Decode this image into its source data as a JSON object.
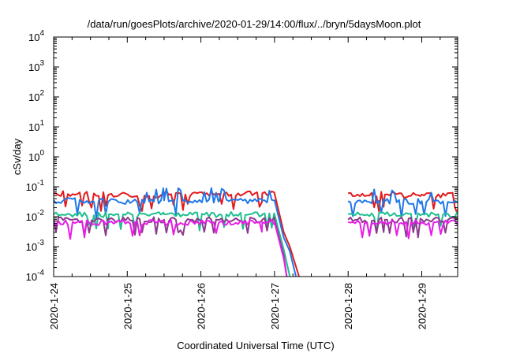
{
  "chart_data": {
    "type": "line",
    "title": "/data/run/goesPlots/archive/2020-01-29/14:00/flux/../bryn/5daysMoon.plot",
    "xlabel": "Coordinated Universal Time (UTC)",
    "ylabel": "cSv/day",
    "x_unit": "days",
    "xlim": [
      "2020-01-24",
      "2020-01-29 14:00"
    ],
    "ylim": [
      0.0001,
      10000
    ],
    "yscale": "log",
    "grid": false,
    "legend": "none",
    "x_ticks": [
      "2020-1-24",
      "2020-1-25",
      "2020-1-26",
      "2020-1-27",
      "2020-1-28",
      "2020-1-29"
    ],
    "y_ticks": [
      {
        "base": "10",
        "exp": "-4",
        "value": 0.0001
      },
      {
        "base": "10",
        "exp": "-3",
        "value": 0.001
      },
      {
        "base": "10",
        "exp": "-2",
        "value": 0.01
      },
      {
        "base": "10",
        "exp": "-1",
        "value": 0.1
      },
      {
        "base": "10",
        "exp": "0",
        "value": 1
      },
      {
        "base": "10",
        "exp": "1",
        "value": 10
      },
      {
        "base": "10",
        "exp": "2",
        "value": 100
      },
      {
        "base": "10",
        "exp": "3",
        "value": 1000
      },
      {
        "base": "10",
        "exp": "4",
        "value": 10000
      }
    ],
    "series": [
      {
        "color": "#e31a1c",
        "x": [
          "2020-01-24 00:00",
          "2020-01-24 18:00",
          "2020-01-25 12:00",
          "2020-01-26 06:00",
          "2020-01-26 20:00",
          "2020-01-27 00:00",
          "2020-01-27 03:00",
          "2020-01-27 05:00",
          "2020-01-27 08:00",
          "2020-01-27 20:00",
          "2020-01-28 00:00",
          "2020-01-28 12:00",
          "2020-01-29 00:00",
          "2020-01-29 14:00"
        ],
        "values": [
          0.06,
          0.055,
          0.06,
          0.058,
          0.06,
          0.06,
          0.003,
          0.001,
          0.0001,
          null,
          0.06,
          0.055,
          0.055,
          0.06
        ]
      },
      {
        "color": "#1f78e8",
        "x": [
          "2020-01-24 00:00",
          "2020-01-24 18:00",
          "2020-01-25 12:00",
          "2020-01-26 06:00",
          "2020-01-26 20:00",
          "2020-01-27 00:00",
          "2020-01-27 03:00",
          "2020-01-27 05:00",
          "2020-01-27 07:00",
          "2020-01-27 20:00",
          "2020-01-28 00:00",
          "2020-01-28 12:00",
          "2020-01-29 00:00",
          "2020-01-29 14:00"
        ],
        "values": [
          0.035,
          0.033,
          0.035,
          0.034,
          0.035,
          0.035,
          0.002,
          0.0007,
          0.0001,
          null,
          0.033,
          0.033,
          0.033,
          0.035
        ]
      },
      {
        "color": "#1fbf8f",
        "x": [
          "2020-01-24 00:00",
          "2020-01-24 18:00",
          "2020-01-25 12:00",
          "2020-01-26 06:00",
          "2020-01-26 20:00",
          "2020-01-27 00:00",
          "2020-01-27 03:00",
          "2020-01-27 05:00",
          "2020-01-27 20:00",
          "2020-01-28 00:00",
          "2020-01-28 12:00",
          "2020-01-29 00:00",
          "2020-01-29 14:00"
        ],
        "values": [
          0.012,
          0.012,
          0.012,
          0.012,
          0.012,
          0.012,
          0.0008,
          0.0001,
          null,
          0.012,
          0.012,
          0.012,
          0.012
        ]
      },
      {
        "color": "#8b3a8b",
        "x": [
          "2020-01-24 00:00",
          "2020-01-24 18:00",
          "2020-01-25 12:00",
          "2020-01-26 06:00",
          "2020-01-26 20:00",
          "2020-01-27 00:00",
          "2020-01-27 03:00",
          "2020-01-27 04:00",
          "2020-01-27 20:00",
          "2020-01-28 00:00",
          "2020-01-28 12:00",
          "2020-01-29 00:00",
          "2020-01-29 14:00"
        ],
        "values": [
          0.008,
          0.008,
          0.008,
          0.008,
          0.008,
          0.008,
          0.0005,
          0.0001,
          null,
          0.008,
          0.008,
          0.008,
          0.008
        ]
      },
      {
        "color": "#e81ee8",
        "x": [
          "2020-01-24 00:00",
          "2020-01-24 18:00",
          "2020-01-25 12:00",
          "2020-01-26 06:00",
          "2020-01-26 20:00",
          "2020-01-27 00:00",
          "2020-01-27 03:00",
          "2020-01-27 04:00",
          "2020-01-27 20:00",
          "2020-01-28 00:00",
          "2020-01-28 12:00",
          "2020-01-29 00:00",
          "2020-01-29 14:00"
        ],
        "values": [
          0.0065,
          0.0065,
          0.0065,
          0.0065,
          0.0065,
          0.0065,
          0.0004,
          0.0001,
          null,
          0.0065,
          0.0065,
          0.0065,
          0.0065
        ]
      }
    ]
  }
}
